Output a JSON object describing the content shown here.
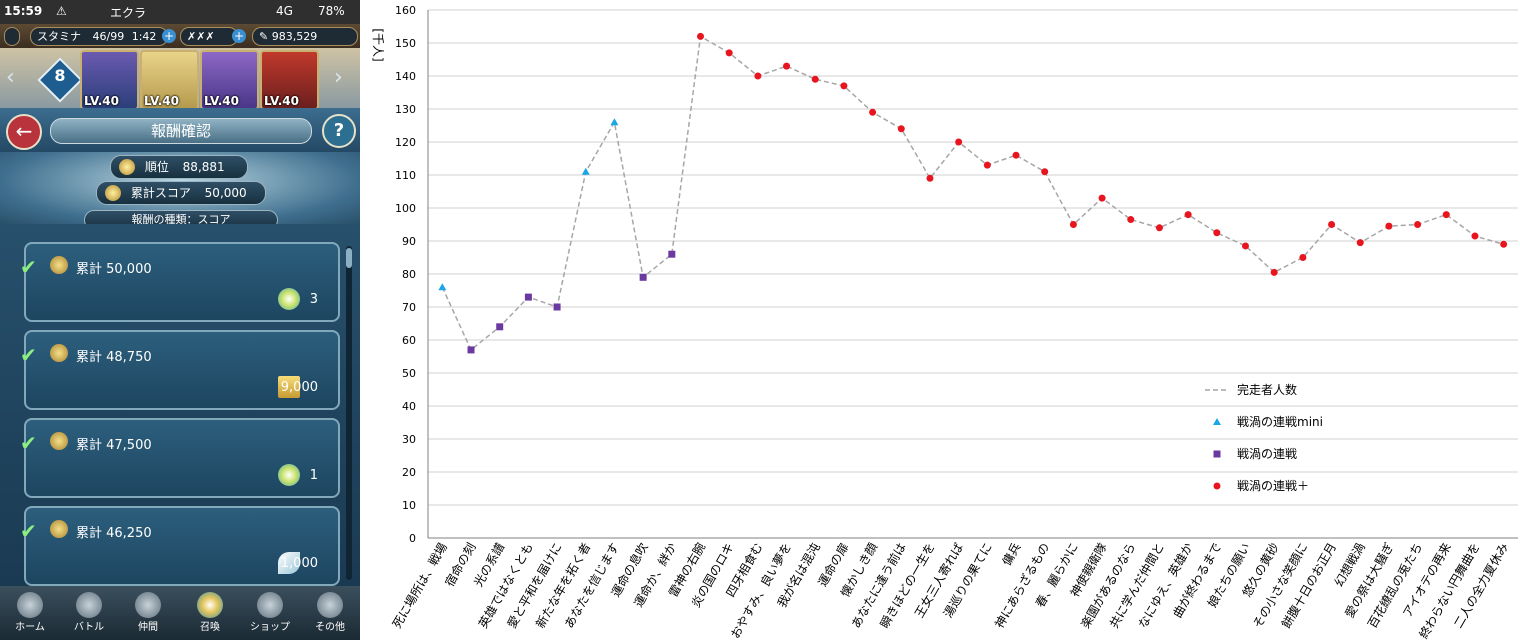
{
  "status_bar": {
    "time": "15:59",
    "app_name": "エクラ",
    "network": "4G",
    "battery": "78%"
  },
  "top_bar": {
    "stamina_label": "スタミナ",
    "stamina_value": "46/99",
    "stamina_timer": "1:42",
    "feathers": "983,529"
  },
  "team": {
    "number": "8",
    "heroes": [
      {
        "level": "LV.40"
      },
      {
        "level": "LV.40"
      },
      {
        "level": "LV.40"
      },
      {
        "level": "LV.40"
      }
    ]
  },
  "screen": {
    "title": "報酬確認",
    "help": "?"
  },
  "summary": {
    "rank_label": "順位",
    "rank_value": "88,881",
    "score_label": "累計スコア",
    "score_value": "50,000",
    "reward_type": "報酬の種類：スコア"
  },
  "rewards": [
    {
      "label": "累計 50,000",
      "amount": "3"
    },
    {
      "label": "累計 48,750",
      "amount": "9,000"
    },
    {
      "label": "累計 47,500",
      "amount": "1"
    },
    {
      "label": "累計 46,250",
      "amount": "1,000"
    }
  ],
  "nav": [
    {
      "label": "ホーム",
      "icon": "home-icon"
    },
    {
      "label": "バトル",
      "icon": "battle-icon"
    },
    {
      "label": "仲間",
      "icon": "allies-icon"
    },
    {
      "label": "召喚",
      "icon": "summon-icon"
    },
    {
      "label": "ショップ",
      "icon": "shop-icon"
    },
    {
      "label": "その他",
      "icon": "gear-icon"
    }
  ],
  "chart_data": {
    "type": "line",
    "title": "",
    "xlabel": "",
    "ylabel": "[千人]",
    "ylim": [
      0,
      160
    ],
    "yticks": [
      0,
      10,
      20,
      30,
      40,
      50,
      60,
      70,
      80,
      90,
      100,
      110,
      120,
      130,
      140,
      150,
      160
    ],
    "grid": true,
    "legend_position": "lower-right",
    "line_name": "完走者人数",
    "categories": [
      "死に場所は、戦場",
      "宿命の刻",
      "光の系譜",
      "英雄ではなくとも",
      "愛と平和を届けに",
      "新たな年を拓く者",
      "あなたを信じます",
      "運命の息吹",
      "運命か、絆か",
      "雷神の右腕",
      "炎の国のロキ",
      "四牙相食む",
      "おやすみ、良い夢を",
      "我が名は混沌",
      "運命の扉",
      "懐かしき顔",
      "あなたに逢う前は",
      "瞬きほどの一生を",
      "王女三人寄れば",
      "湯巡りの果てに",
      "傭兵",
      "神にあらざるもの",
      "春、麗らかに",
      "神使親衛隊",
      "楽園があるのなら",
      "共に学んだ仲間と",
      "なにゆえ、英雄か",
      "曲が終わるまで",
      "娘たちの願い",
      "悠久の黄砂",
      "その小さな笑顔に",
      "餅腹十日のお正月",
      "幻想戦渦",
      "愛の祭は大騒ぎ",
      "百花繚乱の兎たち",
      "アイオテの再来",
      "終わらない円舞曲を",
      "二人の全力夏休み"
    ],
    "values": [
      76,
      57,
      64,
      73,
      70,
      111,
      126,
      79,
      86,
      152,
      147,
      140,
      143,
      139,
      137,
      129,
      124,
      109,
      120,
      113,
      116,
      111,
      95,
      103,
      96.5,
      94,
      98,
      92.5,
      88.5,
      80.5,
      85,
      95,
      89.5,
      94.5,
      95,
      98,
      91.5,
      89
    ],
    "series": [
      {
        "name": "戦渦の連戦mini",
        "marker": "triangle",
        "color": "#1aa7e8",
        "indices": [
          0,
          5,
          6
        ]
      },
      {
        "name": "戦渦の連戦",
        "marker": "square",
        "color": "#6b3aa0",
        "indices": [
          1,
          2,
          3,
          4,
          7,
          8
        ]
      },
      {
        "name": "戦渦の連戦＋",
        "marker": "circle",
        "color": "#e8141e",
        "indices": [
          9,
          10,
          11,
          12,
          13,
          14,
          15,
          16,
          17,
          18,
          19,
          20,
          21,
          22,
          23,
          24,
          25,
          26,
          27,
          28,
          29,
          30,
          31,
          32,
          33,
          34,
          35,
          36,
          37
        ]
      }
    ],
    "line_color": "#a6a6a6"
  }
}
